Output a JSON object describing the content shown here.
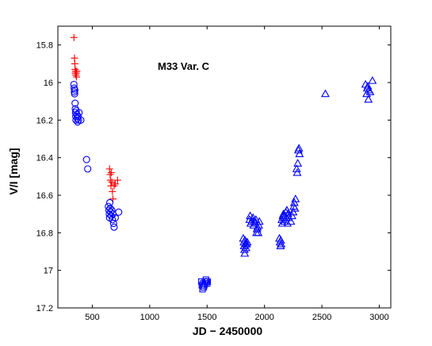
{
  "chart_data": {
    "type": "scatter",
    "title": "",
    "annotation": "M33 Var. C",
    "xlabel": "JD − 2450000",
    "ylabel": "V/I [mag]",
    "xlim": [
      200,
      3100
    ],
    "ylim": [
      17.2,
      15.7
    ],
    "y_inverted": true,
    "grid": false,
    "xticks": [
      500,
      1000,
      1500,
      2000,
      2500,
      3000
    ],
    "yticks": [
      15.8,
      16,
      16.2,
      16.4,
      16.6,
      16.8,
      17,
      17.2
    ],
    "xtick_labels": [
      "500",
      "1000",
      "1500",
      "2000",
      "2500",
      "3000"
    ],
    "ytick_labels": [
      "15.8",
      "16",
      "16.2",
      "16.4",
      "16.6",
      "16.8",
      "17",
      "17.2"
    ],
    "series": [
      {
        "marker": "plus",
        "color": "#ff0000",
        "points": [
          [
            340,
            15.76
          ],
          [
            345,
            15.87
          ],
          [
            348,
            15.9
          ],
          [
            350,
            15.93
          ],
          [
            352,
            15.95
          ],
          [
            355,
            15.94
          ],
          [
            357,
            15.96
          ],
          [
            360,
            15.95
          ],
          [
            362,
            15.97
          ],
          [
            365,
            15.94
          ],
          [
            650,
            16.46
          ],
          [
            655,
            16.49
          ],
          [
            658,
            16.52
          ],
          [
            662,
            16.55
          ],
          [
            665,
            16.48
          ],
          [
            670,
            16.53
          ],
          [
            675,
            16.58
          ],
          [
            680,
            16.62
          ],
          [
            690,
            16.55
          ],
          [
            700,
            16.54
          ],
          [
            720,
            16.52
          ]
        ]
      },
      {
        "marker": "circle",
        "color": "#0000ff",
        "points": [
          [
            340,
            16.01
          ],
          [
            342,
            16.03
          ],
          [
            344,
            16.05
          ],
          [
            346,
            16.06
          ],
          [
            348,
            16.04
          ],
          [
            350,
            16.11
          ],
          [
            352,
            16.14
          ],
          [
            354,
            16.16
          ],
          [
            356,
            16.18
          ],
          [
            358,
            16.2
          ],
          [
            360,
            16.15
          ],
          [
            365,
            16.17
          ],
          [
            370,
            16.19
          ],
          [
            372,
            16.21
          ],
          [
            375,
            16.18
          ],
          [
            380,
            16.2
          ],
          [
            385,
            16.16
          ],
          [
            400,
            16.2
          ],
          [
            450,
            16.41
          ],
          [
            460,
            16.46
          ],
          [
            640,
            16.66
          ],
          [
            645,
            16.68
          ],
          [
            648,
            16.7
          ],
          [
            650,
            16.72
          ],
          [
            652,
            16.64
          ],
          [
            655,
            16.67
          ],
          [
            660,
            16.69
          ],
          [
            665,
            16.71
          ],
          [
            670,
            16.68
          ],
          [
            675,
            16.73
          ],
          [
            680,
            16.7
          ],
          [
            685,
            16.75
          ],
          [
            690,
            16.77
          ],
          [
            700,
            16.72
          ],
          [
            730,
            16.69
          ]
        ]
      },
      {
        "marker": "square",
        "color": "#0000ff",
        "points": [
          [
            1450,
            17.06
          ],
          [
            1455,
            17.08
          ],
          [
            1460,
            17.1
          ],
          [
            1465,
            17.07
          ],
          [
            1470,
            17.09
          ],
          [
            1475,
            17.08
          ],
          [
            1480,
            17.06
          ],
          [
            1485,
            17.07
          ],
          [
            1490,
            17.05
          ],
          [
            1495,
            17.06
          ],
          [
            1500,
            17.07
          ],
          [
            1505,
            17.06
          ]
        ]
      },
      {
        "marker": "triangle",
        "color": "#0000ff",
        "points": [
          [
            1815,
            16.83
          ],
          [
            1820,
            16.85
          ],
          [
            1822,
            16.87
          ],
          [
            1825,
            16.89
          ],
          [
            1828,
            16.91
          ],
          [
            1830,
            16.84
          ],
          [
            1835,
            16.86
          ],
          [
            1840,
            16.88
          ],
          [
            1845,
            16.86
          ],
          [
            1850,
            16.85
          ],
          [
            1870,
            16.73
          ],
          [
            1875,
            16.71
          ],
          [
            1880,
            16.75
          ],
          [
            1890,
            16.74
          ],
          [
            1900,
            16.72
          ],
          [
            1905,
            16.76
          ],
          [
            1910,
            16.74
          ],
          [
            1920,
            16.75
          ],
          [
            1925,
            16.73
          ],
          [
            1930,
            16.8
          ],
          [
            1935,
            16.78
          ],
          [
            1940,
            16.77
          ],
          [
            1945,
            16.8
          ],
          [
            1950,
            16.76
          ],
          [
            1955,
            16.74
          ],
          [
            2130,
            16.83
          ],
          [
            2135,
            16.85
          ],
          [
            2140,
            16.87
          ],
          [
            2142,
            16.84
          ],
          [
            2145,
            16.86
          ],
          [
            2150,
            16.73
          ],
          [
            2155,
            16.75
          ],
          [
            2160,
            16.71
          ],
          [
            2165,
            16.7
          ],
          [
            2170,
            16.72
          ],
          [
            2175,
            16.74
          ],
          [
            2180,
            16.71
          ],
          [
            2185,
            16.69
          ],
          [
            2190,
            16.72
          ],
          [
            2195,
            16.68
          ],
          [
            2200,
            16.75
          ],
          [
            2205,
            16.7
          ],
          [
            2210,
            16.72
          ],
          [
            2230,
            16.74
          ],
          [
            2240,
            16.71
          ],
          [
            2250,
            16.69
          ],
          [
            2255,
            16.66
          ],
          [
            2260,
            16.64
          ],
          [
            2265,
            16.67
          ],
          [
            2270,
            16.62
          ],
          [
            2280,
            16.46
          ],
          [
            2285,
            16.48
          ],
          [
            2290,
            16.43
          ],
          [
            2295,
            16.36
          ],
          [
            2300,
            16.35
          ],
          [
            2305,
            16.38
          ],
          [
            2530,
            16.06
          ],
          [
            2880,
            16.01
          ],
          [
            2890,
            16.06
          ],
          [
            2895,
            16.03
          ],
          [
            2900,
            16.02
          ],
          [
            2905,
            16.09
          ],
          [
            2910,
            16.04
          ],
          [
            2920,
            16.05
          ],
          [
            2940,
            15.99
          ]
        ]
      }
    ]
  }
}
